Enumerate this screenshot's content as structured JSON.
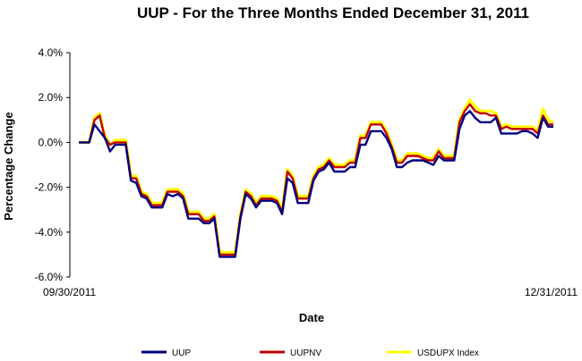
{
  "chart_data": {
    "type": "line",
    "title": "UUP - For the Three Months Ended December 31, 2011",
    "xlabel": "Date",
    "ylabel": "Percentage Change",
    "x_tick_labels": [
      "09/30/2011",
      "12/31/2011"
    ],
    "y_tick_labels": [
      "4.0%",
      "2.0%",
      "0.0%",
      "-2.0%",
      "-4.0%",
      "-6.0%"
    ],
    "y_ticks": [
      4,
      2,
      0,
      -2,
      -4,
      -6
    ],
    "ylim": [
      -6,
      4
    ],
    "grid": false,
    "legend_position": "bottom",
    "x_index_count": 92,
    "series": [
      {
        "name": "UUP",
        "color": "#000080",
        "values": [
          0,
          0,
          0,
          0.8,
          0.5,
          0.2,
          -0.4,
          -0.1,
          -0.1,
          -0.1,
          -1.7,
          -1.8,
          -2.4,
          -2.5,
          -2.9,
          -2.9,
          -2.9,
          -2.3,
          -2.4,
          -2.3,
          -2.5,
          -3.4,
          -3.4,
          -3.4,
          -3.6,
          -3.6,
          -3.4,
          -5.1,
          -5.1,
          -5.1,
          -5.1,
          -3.4,
          -2.3,
          -2.5,
          -2.9,
          -2.6,
          -2.6,
          -2.6,
          -2.7,
          -3.2,
          -1.6,
          -1.8,
          -2.7,
          -2.7,
          -2.7,
          -1.7,
          -1.3,
          -1.2,
          -0.9,
          -1.3,
          -1.3,
          -1.3,
          -1.1,
          -1.1,
          -0.1,
          -0.1,
          0.5,
          0.5,
          0.5,
          0.2,
          -0.3,
          -1.1,
          -1.1,
          -0.9,
          -0.8,
          -0.8,
          -0.8,
          -0.9,
          -1.0,
          -0.6,
          -0.8,
          -0.8,
          -0.8,
          0.6,
          1.2,
          1.4,
          1.1,
          0.9,
          0.9,
          0.9,
          1.1,
          0.4,
          0.4,
          0.4,
          0.4,
          0.5,
          0.5,
          0.4,
          0.2,
          1.1,
          0.7,
          0.7
        ]
      },
      {
        "name": "UUPNV",
        "color": "#c00000",
        "values": [
          0,
          0,
          0,
          1.0,
          1.2,
          0.2,
          -0.1,
          0,
          0,
          0,
          -1.6,
          -1.6,
          -2.3,
          -2.4,
          -2.8,
          -2.8,
          -2.8,
          -2.2,
          -2.2,
          -2.2,
          -2.4,
          -3.2,
          -3.2,
          -3.2,
          -3.5,
          -3.5,
          -3.3,
          -5.0,
          -5.0,
          -5.0,
          -5.0,
          -3.3,
          -2.2,
          -2.4,
          -2.8,
          -2.5,
          -2.5,
          -2.5,
          -2.6,
          -3.1,
          -1.3,
          -1.6,
          -2.5,
          -2.5,
          -2.5,
          -1.6,
          -1.2,
          -1.1,
          -0.8,
          -1.1,
          -1.1,
          -1.1,
          -0.9,
          -0.9,
          0.2,
          0.2,
          0.8,
          0.8,
          0.8,
          0.4,
          -0.2,
          -0.9,
          -0.9,
          -0.6,
          -0.6,
          -0.6,
          -0.7,
          -0.8,
          -0.8,
          -0.4,
          -0.7,
          -0.7,
          -0.7,
          0.9,
          1.4,
          1.7,
          1.4,
          1.3,
          1.3,
          1.2,
          1.2,
          0.6,
          0.7,
          0.6,
          0.6,
          0.6,
          0.6,
          0.6,
          0.4,
          1.2,
          0.8,
          0.8
        ]
      },
      {
        "name": "USDUPX Index",
        "color": "#ffff00",
        "values": [
          0,
          0,
          0,
          1.1,
          1.3,
          0.3,
          -0.1,
          0.1,
          0.1,
          0.1,
          -1.5,
          -1.5,
          -2.2,
          -2.3,
          -2.7,
          -2.7,
          -2.7,
          -2.1,
          -2.1,
          -2.1,
          -2.3,
          -3.1,
          -3.1,
          -3.1,
          -3.4,
          -3.4,
          -3.2,
          -4.9,
          -4.9,
          -4.9,
          -4.9,
          -3.2,
          -2.1,
          -2.3,
          -2.7,
          -2.4,
          -2.4,
          -2.4,
          -2.5,
          -3.0,
          -1.2,
          -1.5,
          -2.4,
          -2.4,
          -2.4,
          -1.5,
          -1.1,
          -1.0,
          -0.7,
          -1.0,
          -1.0,
          -1.0,
          -0.8,
          -0.8,
          0.3,
          0.3,
          0.9,
          0.9,
          0.9,
          0.5,
          -0.1,
          -0.8,
          -0.8,
          -0.5,
          -0.5,
          -0.5,
          -0.6,
          -0.7,
          -0.7,
          -0.3,
          -0.6,
          -0.6,
          -0.6,
          1.0,
          1.5,
          1.9,
          1.6,
          1.4,
          1.4,
          1.4,
          1.3,
          0.7,
          0.8,
          0.7,
          0.7,
          0.7,
          0.7,
          0.7,
          0.5,
          1.5,
          1.0,
          0.9
        ]
      }
    ]
  }
}
